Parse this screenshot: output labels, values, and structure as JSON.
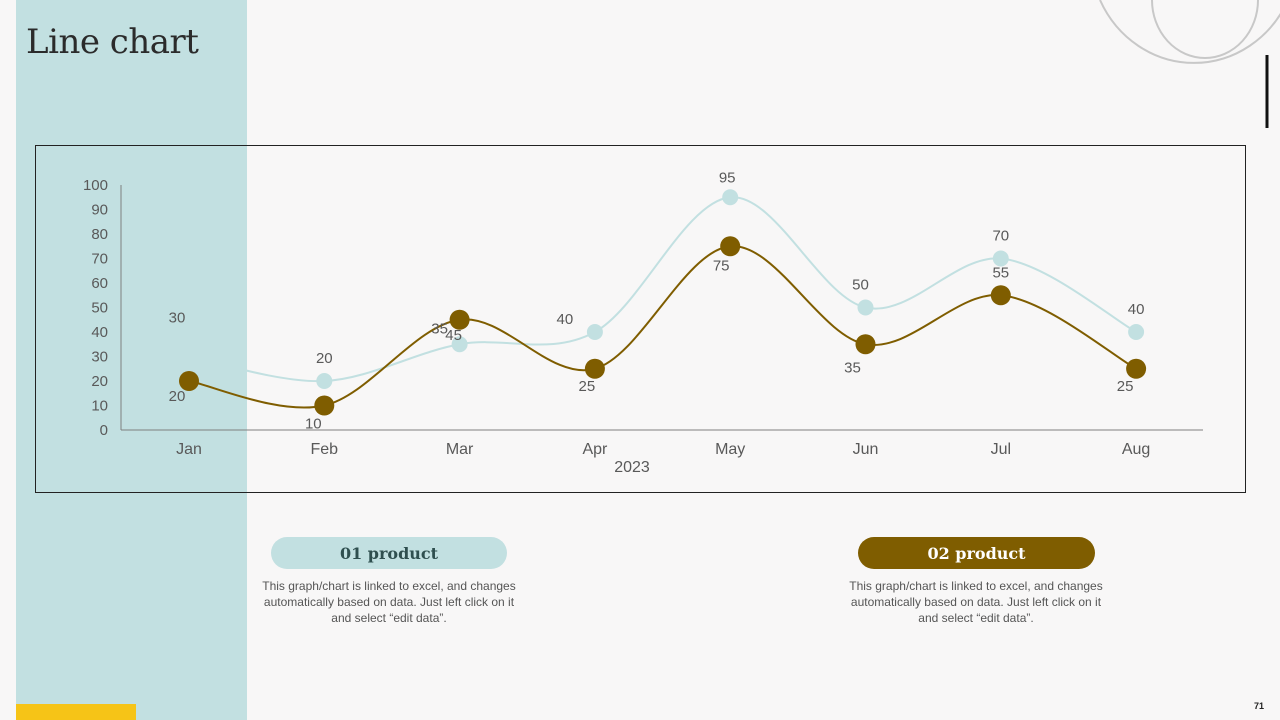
{
  "slide": {
    "title": "Line chart",
    "page_number": "71"
  },
  "legend": [
    {
      "label": "01 product",
      "description": "This graph/chart is linked to excel, and changes automatically based on data. Just left click on it and select “edit data”."
    },
    {
      "label": "02 product",
      "description": "This graph/chart is linked to excel, and changes automatically based on data. Just left click on it and select “edit data”."
    }
  ],
  "colors": {
    "series_1": "#c2e0e1",
    "series_2": "#7f5d00",
    "accent_band": "#c2e0e1",
    "accent_yellow": "#f6c417"
  },
  "chart_data": {
    "type": "line",
    "categories": [
      "Jan",
      "Feb",
      "Mar",
      "Apr",
      "May",
      "Jun",
      "Jul",
      "Aug"
    ],
    "xlabel": "2023",
    "ylim": [
      0,
      100
    ],
    "yticks": [
      0,
      10,
      20,
      30,
      40,
      50,
      60,
      70,
      80,
      90,
      100
    ],
    "smooth": true,
    "grid": false,
    "series": [
      {
        "values": [
          30,
          20,
          35,
          40,
          95,
          50,
          70,
          40
        ]
      },
      {
        "values": [
          20,
          10,
          45,
          25,
          75,
          35,
          55,
          25
        ]
      }
    ]
  }
}
